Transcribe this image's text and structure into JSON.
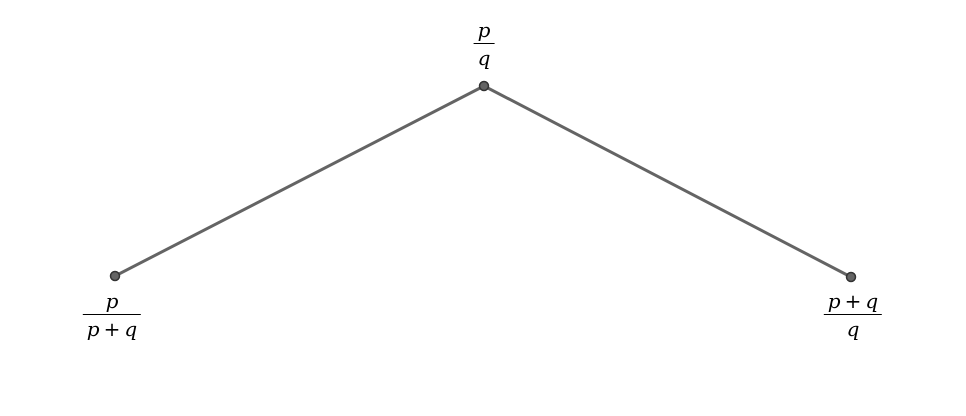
{
  "colors": {
    "edge": "#646464",
    "node_fill": "#646464",
    "node_stroke": "#333333",
    "label": "#000000"
  },
  "nodes": {
    "top": {
      "label": {
        "numerator": "p",
        "denominator": "q"
      }
    },
    "left": {
      "label": {
        "numerator": "p",
        "denominator": [
          "p",
          "+",
          "q"
        ]
      }
    },
    "right": {
      "label": {
        "numerator": [
          "p",
          "+",
          "q"
        ],
        "denominator": "q"
      }
    }
  },
  "edges": [
    {
      "from": "top",
      "to": "left"
    },
    {
      "from": "top",
      "to": "right"
    }
  ]
}
